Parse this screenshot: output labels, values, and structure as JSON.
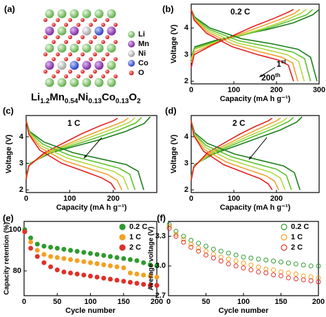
{
  "structure": {
    "panel_label": "(a)",
    "legend": [
      "Li",
      "Mn",
      "Ni",
      "Co",
      "O"
    ],
    "formula": [
      {
        "text": "Li",
        "sub": "1.2"
      },
      {
        "text": "Mn",
        "sub": "0.54"
      },
      {
        "text": "Ni",
        "sub": "0.13"
      },
      {
        "text": "Co",
        "sub": "0.13"
      },
      {
        "text": "O",
        "sub": "2"
      }
    ]
  },
  "chart_data": [
    {
      "type": "line",
      "panel_label": "(b)",
      "x_label": "Capacity (mA h g⁻¹)",
      "y_label": "Voltage (V)",
      "xlim": [
        0,
        300
      ],
      "xticks": [
        0,
        100,
        200,
        300
      ],
      "ylim": [
        1.9,
        4.9
      ],
      "yticks": [
        2,
        3,
        4
      ],
      "annotations": [
        {
          "text": "0.2 C"
        },
        {
          "text": "1",
          "sup": "st"
        },
        {
          "text": "200",
          "sup": "th"
        }
      ],
      "series": [
        {
          "color": "#1b7d1b",
          "x": [
            0,
            9,
            60,
            120,
            180,
            240,
            285,
            300
          ],
          "values": [
            2.9,
            3.3,
            3.55,
            3.75,
            3.95,
            4.2,
            4.5,
            4.7
          ]
        },
        {
          "color": "#5cc02c",
          "x": [
            0,
            9,
            57,
            114,
            171,
            228,
            271,
            285
          ],
          "values": [
            2.85,
            3.25,
            3.5,
            3.7,
            3.95,
            4.25,
            4.5,
            4.7
          ]
        },
        {
          "color": "#b5d840",
          "x": [
            0,
            8,
            54,
            108,
            162,
            216,
            257,
            270
          ],
          "values": [
            2.8,
            3.2,
            3.45,
            3.7,
            3.95,
            4.25,
            4.55,
            4.7
          ]
        },
        {
          "color": "#f0a030",
          "x": [
            0,
            8,
            51,
            102,
            153,
            204,
            242,
            255
          ],
          "values": [
            2.7,
            3.1,
            3.4,
            3.7,
            4.0,
            4.3,
            4.55,
            4.7
          ]
        },
        {
          "color": "#e02020",
          "x": [
            0,
            7,
            48,
            96,
            144,
            192,
            228,
            240
          ],
          "values": [
            2.5,
            3.0,
            3.35,
            3.7,
            4.05,
            4.35,
            4.6,
            4.7
          ]
        },
        {
          "color": "#1b7d1b",
          "x": [
            0,
            9,
            44,
            118,
            192,
            251,
            280,
            295
          ],
          "values": [
            4.7,
            4.4,
            4.0,
            3.6,
            3.4,
            3.2,
            2.9,
            2.0
          ]
        },
        {
          "color": "#5cc02c",
          "x": [
            0,
            8,
            42,
            112,
            182,
            238,
            266,
            280
          ],
          "values": [
            4.7,
            4.38,
            3.95,
            3.52,
            3.3,
            3.1,
            2.85,
            2.0
          ]
        },
        {
          "color": "#b5d840",
          "x": [
            0,
            8,
            40,
            106,
            172,
            225,
            252,
            265
          ],
          "values": [
            4.7,
            4.35,
            3.9,
            3.45,
            3.2,
            3.0,
            2.75,
            2.0
          ]
        },
        {
          "color": "#f0a030",
          "x": [
            0,
            8,
            38,
            100,
            163,
            213,
            238,
            250
          ],
          "values": [
            4.7,
            4.33,
            3.85,
            3.38,
            3.1,
            2.9,
            2.68,
            2.0
          ]
        },
        {
          "color": "#e02020",
          "x": [
            0,
            7,
            36,
            96,
            156,
            204,
            228,
            240
          ],
          "values": [
            4.7,
            4.3,
            3.8,
            3.3,
            3.0,
            2.8,
            2.6,
            2.0
          ]
        }
      ]
    },
    {
      "type": "line",
      "panel_label": "(c)",
      "x_label": "Capacity (mA h g⁻¹)",
      "y_label": "Voltage (V)",
      "xlim": [
        0,
        300
      ],
      "xticks": [
        0,
        100,
        200
      ],
      "ylim": [
        1.9,
        4.8
      ],
      "yticks": [
        2,
        3,
        4
      ],
      "annotations": [
        {
          "text": "1 C"
        }
      ],
      "series": [
        {
          "color": "#1b7d1b",
          "x": [
            0,
            9,
            57,
            114,
            171,
            228,
            271,
            285
          ],
          "values": [
            2.55,
            3.0,
            3.4,
            3.65,
            3.9,
            4.2,
            4.5,
            4.75
          ]
        },
        {
          "color": "#5cc02c",
          "x": [
            0,
            8,
            53,
            106,
            159,
            212,
            252,
            265
          ],
          "values": [
            2.5,
            2.98,
            3.4,
            3.67,
            3.95,
            4.25,
            4.52,
            4.73
          ]
        },
        {
          "color": "#b5d840",
          "x": [
            0,
            8,
            50,
            100,
            150,
            200,
            238,
            250
          ],
          "values": [
            2.48,
            2.95,
            3.4,
            3.7,
            4.0,
            4.3,
            4.55,
            4.72
          ]
        },
        {
          "color": "#f0a030",
          "x": [
            0,
            7,
            47,
            94,
            141,
            188,
            223,
            235
          ],
          "values": [
            2.45,
            2.92,
            3.4,
            3.72,
            4.05,
            4.35,
            4.57,
            4.71
          ]
        },
        {
          "color": "#e02020",
          "x": [
            0,
            6,
            42,
            84,
            126,
            168,
            200,
            210
          ],
          "values": [
            2.4,
            2.9,
            3.4,
            3.75,
            4.1,
            4.4,
            4.6,
            4.7
          ]
        },
        {
          "color": "#1b7d1b",
          "x": [
            0,
            8,
            41,
            108,
            176,
            230,
            257,
            270
          ],
          "values": [
            4.6,
            4.2,
            3.8,
            3.4,
            3.15,
            2.95,
            2.7,
            2.0
          ]
        },
        {
          "color": "#5cc02c",
          "x": [
            0,
            8,
            38,
            100,
            163,
            213,
            238,
            250
          ],
          "values": [
            4.6,
            4.18,
            3.72,
            3.3,
            3.04,
            2.82,
            2.59,
            2.0
          ]
        },
        {
          "color": "#b5d840",
          "x": [
            0,
            7,
            35,
            94,
            153,
            200,
            223,
            235
          ],
          "values": [
            4.6,
            4.15,
            3.65,
            3.2,
            2.92,
            2.7,
            2.48,
            2.0
          ]
        },
        {
          "color": "#f0a030",
          "x": [
            0,
            7,
            33,
            88,
            143,
            187,
            209,
            220
          ],
          "values": [
            4.6,
            4.12,
            3.58,
            3.1,
            2.81,
            2.58,
            2.36,
            2.0
          ]
        },
        {
          "color": "#e02020",
          "x": [
            0,
            6,
            31,
            82,
            133,
            174,
            195,
            205
          ],
          "values": [
            4.6,
            4.1,
            3.5,
            3.0,
            2.7,
            2.45,
            2.25,
            2.0
          ]
        }
      ]
    },
    {
      "type": "line",
      "panel_label": "(d)",
      "x_label": "Capacity (mA h g⁻¹)",
      "y_label": "Voltage (V)",
      "xlim": [
        0,
        300
      ],
      "xticks": [
        0,
        100,
        200
      ],
      "ylim": [
        1.9,
        4.8
      ],
      "yticks": [
        2,
        3,
        4
      ],
      "annotations": [
        {
          "text": "2 C"
        }
      ],
      "series": [
        {
          "color": "#1b7d1b",
          "x": [
            0,
            8,
            52,
            104,
            156,
            208,
            247,
            260
          ],
          "values": [
            2.5,
            2.95,
            3.35,
            3.65,
            3.95,
            4.25,
            4.55,
            4.75
          ]
        },
        {
          "color": "#5cc02c",
          "x": [
            0,
            7,
            48,
            96,
            144,
            192,
            228,
            240
          ],
          "values": [
            2.45,
            2.92,
            3.35,
            3.68,
            4.0,
            4.3,
            4.57,
            4.73
          ]
        },
        {
          "color": "#b5d840",
          "x": [
            0,
            7,
            45,
            90,
            135,
            180,
            214,
            225
          ],
          "values": [
            2.42,
            2.9,
            3.36,
            3.7,
            4.03,
            4.33,
            4.58,
            4.72
          ]
        },
        {
          "color": "#f0a030",
          "x": [
            0,
            6,
            42,
            84,
            126,
            168,
            200,
            210
          ],
          "values": [
            2.4,
            2.88,
            3.38,
            3.72,
            4.06,
            4.37,
            4.6,
            4.71
          ]
        },
        {
          "color": "#e02020",
          "x": [
            0,
            6,
            38,
            76,
            114,
            152,
            181,
            190
          ],
          "values": [
            2.35,
            2.85,
            3.4,
            3.75,
            4.1,
            4.4,
            4.6,
            4.7
          ]
        },
        {
          "color": "#1b7d1b",
          "x": [
            0,
            8,
            38,
            102,
            166,
            217,
            242,
            255
          ],
          "values": [
            4.6,
            4.15,
            3.75,
            3.35,
            3.1,
            2.9,
            2.65,
            2.0
          ]
        },
        {
          "color": "#5cc02c",
          "x": [
            0,
            7,
            35,
            94,
            153,
            200,
            223,
            235
          ],
          "values": [
            4.6,
            4.12,
            3.67,
            3.25,
            2.98,
            2.78,
            2.55,
            2.0
          ]
        },
        {
          "color": "#b5d840",
          "x": [
            0,
            7,
            33,
            88,
            143,
            187,
            209,
            220
          ],
          "values": [
            4.6,
            4.1,
            3.6,
            3.15,
            2.87,
            2.66,
            2.45,
            2.0
          ]
        },
        {
          "color": "#f0a030",
          "x": [
            0,
            6,
            31,
            82,
            133,
            174,
            195,
            205
          ],
          "values": [
            4.6,
            4.07,
            3.52,
            3.05,
            2.76,
            2.54,
            2.34,
            2.0
          ]
        },
        {
          "color": "#e02020",
          "x": [
            0,
            6,
            29,
            76,
            124,
            162,
            181,
            190
          ],
          "values": [
            4.6,
            4.05,
            3.45,
            2.95,
            2.65,
            2.42,
            2.22,
            2.0
          ]
        }
      ]
    },
    {
      "type": "scatter",
      "panel_label": "(e)",
      "x_label": "Cycle number",
      "y_label": "Capacity retention (%)",
      "xlim": [
        0,
        200
      ],
      "xticks": [
        0,
        50,
        100,
        150,
        200
      ],
      "ylim": [
        68,
        104
      ],
      "yticks": [
        80,
        100
      ],
      "marker_fill": true,
      "legend": "upper right",
      "x": [
        1,
        10,
        20,
        30,
        40,
        50,
        60,
        70,
        80,
        90,
        100,
        110,
        120,
        130,
        140,
        150,
        160,
        170,
        180,
        190,
        200
      ],
      "series": [
        {
          "name": "0.2 C",
          "color": "#2e9a2e",
          "values": [
            100,
            96,
            93,
            92,
            91.5,
            91,
            90.5,
            90,
            89.5,
            89,
            88.5,
            88,
            87.5,
            87,
            86.5,
            86,
            85.5,
            85,
            84,
            83,
            82.5
          ]
        },
        {
          "name": "1 C",
          "color": "#f5a020",
          "values": [
            99,
            94,
            90,
            88,
            87,
            86.5,
            86,
            85.5,
            85,
            84.5,
            84,
            83.5,
            83,
            82.5,
            82,
            81.5,
            79,
            78.5,
            78,
            77.5,
            77
          ]
        },
        {
          "name": "2 C",
          "color": "#e0302a",
          "values": [
            99,
            91,
            87,
            84,
            82,
            80.5,
            79.5,
            79,
            78.5,
            78,
            77.5,
            77,
            76.5,
            76,
            75.5,
            75,
            74.5,
            74,
            73.5,
            73,
            73
          ]
        }
      ]
    },
    {
      "type": "scatter",
      "panel_label": "(f)",
      "x_label": "Cycle number",
      "y_label": "Average voltage (V)",
      "xlim": [
        0,
        200
      ],
      "xticks": [
        0,
        50,
        100,
        150,
        200
      ],
      "ylim": [
        2.7,
        3.45
      ],
      "yticks": [
        2.7,
        {
          "value": 3,
          "label": "3.0"
        },
        3.3
      ],
      "marker_fill": false,
      "legend": "upper right",
      "x": [
        1,
        10,
        20,
        30,
        40,
        50,
        60,
        70,
        80,
        90,
        100,
        110,
        120,
        130,
        140,
        150,
        160,
        170,
        180,
        190,
        200
      ],
      "series": [
        {
          "name": "0.2 C",
          "color": "#2e9a2e",
          "values": [
            3.42,
            3.35,
            3.3,
            3.26,
            3.23,
            3.2,
            3.17,
            3.15,
            3.13,
            3.11,
            3.09,
            3.08,
            3.07,
            3.06,
            3.05,
            3.04,
            3.03,
            3.02,
            3.01,
            3.0,
            3.0
          ]
        },
        {
          "name": "1 C",
          "color": "#f5a020",
          "values": [
            3.4,
            3.32,
            3.27,
            3.22,
            3.18,
            3.15,
            3.12,
            3.09,
            3.07,
            3.05,
            3.03,
            3.01,
            2.99,
            2.97,
            2.96,
            2.94,
            2.93,
            2.92,
            2.9,
            2.89,
            2.88
          ]
        },
        {
          "name": "2 C",
          "color": "#e0302a",
          "values": [
            3.38,
            3.3,
            3.24,
            3.19,
            3.15,
            3.11,
            3.08,
            3.05,
            3.02,
            3.0,
            2.98,
            2.96,
            2.94,
            2.93,
            2.91,
            2.9,
            2.88,
            2.87,
            2.86,
            2.85,
            2.84
          ]
        }
      ]
    }
  ]
}
